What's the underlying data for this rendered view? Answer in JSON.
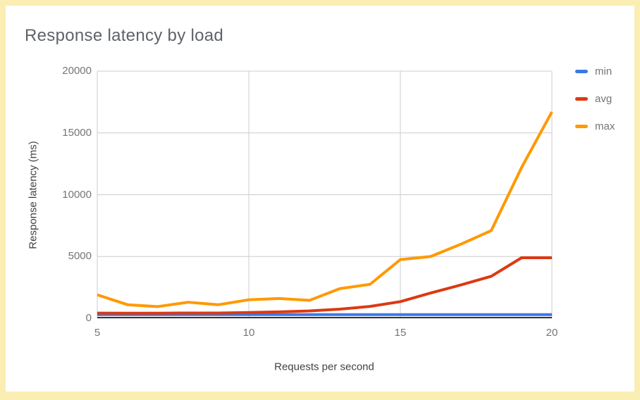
{
  "card": {
    "background": "#ffffff",
    "border_color": "#fbeeb2"
  },
  "chart_data": {
    "type": "line",
    "title": "Response latency by load",
    "xlabel": "Requests per second",
    "ylabel": "Response latency (ms)",
    "x": [
      5,
      6,
      7,
      8,
      9,
      10,
      11,
      12,
      13,
      14,
      15,
      16,
      17,
      18,
      19,
      20
    ],
    "series": [
      {
        "name": "min",
        "color": "#3b78e7",
        "values": [
          300,
          300,
          300,
          300,
          300,
          300,
          300,
          300,
          300,
          300,
          300,
          300,
          300,
          300,
          300,
          300
        ]
      },
      {
        "name": "avg",
        "color": "#dc3912",
        "values": [
          420,
          410,
          415,
          430,
          425,
          470,
          520,
          600,
          740,
          960,
          1350,
          2050,
          2700,
          3400,
          4900,
          4900
        ]
      },
      {
        "name": "max",
        "color": "#ff9900",
        "values": [
          1900,
          1100,
          950,
          1300,
          1100,
          1500,
          1600,
          1450,
          2400,
          2750,
          4750,
          5000,
          6000,
          7100,
          12200,
          16700
        ]
      }
    ],
    "xlim": [
      5,
      20
    ],
    "ylim": [
      0,
      20000
    ],
    "xticks": [
      5,
      10,
      15,
      20
    ],
    "yticks": [
      0,
      5000,
      10000,
      15000,
      20000
    ],
    "grid": true,
    "legend_position": "right",
    "line_width": 4
  },
  "styles": {
    "grid_color": "#cccccc",
    "baseline_color": "#333333",
    "tick_label_color": "#757575",
    "axis_title_color": "#424242",
    "title_color": "#5f6368",
    "legend_label_color": "#757575"
  }
}
